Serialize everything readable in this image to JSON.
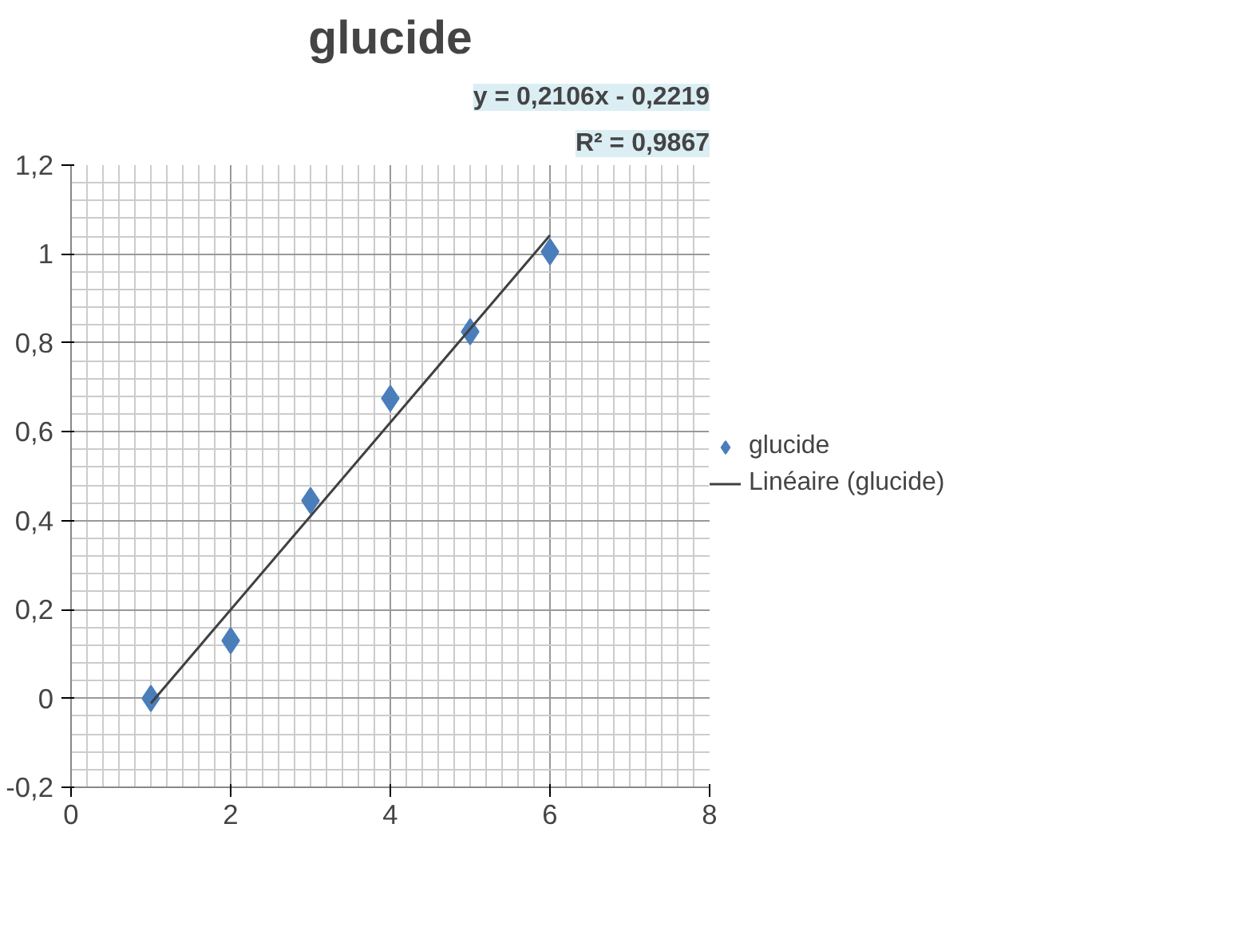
{
  "chart_data": {
    "type": "scatter",
    "title": "glucide",
    "x": [
      1,
      2,
      3,
      4,
      5,
      6
    ],
    "series": [
      {
        "name": "glucide",
        "color": "#4a7ebb",
        "values": [
          0,
          0.13,
          0.445,
          0.675,
          0.825,
          1.005
        ],
        "marker": "diamond"
      },
      {
        "name": "Linéaire (glucide)",
        "color": "#404040",
        "type": "line",
        "x": [
          1,
          6
        ],
        "values": [
          -0.011,
          1.042
        ],
        "marker": "none"
      }
    ],
    "xlim": [
      0,
      8
    ],
    "xticks": [
      0,
      2,
      4,
      6,
      8
    ],
    "ylim": [
      -0.2,
      1.2
    ],
    "yticks": [
      {
        "value": -0.2,
        "label": "-0,2"
      },
      0,
      {
        "value": 0.2,
        "label": "0,2"
      },
      {
        "value": 0.4,
        "label": "0,4"
      },
      {
        "value": 0.6,
        "label": "0,6"
      },
      {
        "value": 0.8,
        "label": "0,8"
      },
      1,
      {
        "value": 1.2,
        "label": "1,2"
      }
    ],
    "annotations": [
      "y = 0,2106x - 0,2219",
      "R² = 0,9867"
    ],
    "grid": true,
    "legend": "right"
  }
}
